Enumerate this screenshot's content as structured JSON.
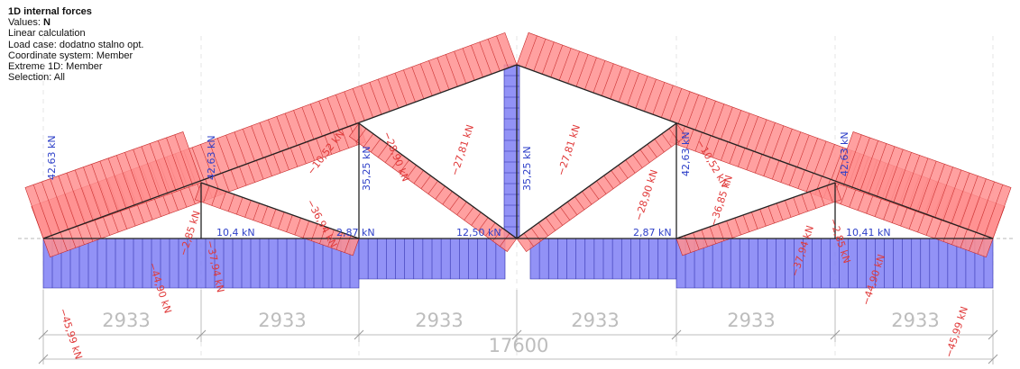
{
  "info": {
    "title": "1D internal forces",
    "values_label": "Values:",
    "values_value": "N",
    "calc": "Linear calculation",
    "load_case": "Load case: dodatno stalno opt.",
    "coord": "Coordinate system: Member",
    "extreme": "Extreme 1D: Member",
    "selection": "Selection: All"
  },
  "colors": {
    "tension": "#ff8f8f",
    "compression": "#7f7ff5",
    "member": "#222222",
    "dimension": "#bdbdbd"
  },
  "force_labels": [
    {
      "text": "-45,99 kN",
      "tone": "red"
    },
    {
      "text": "-44,90 kN",
      "tone": "red"
    },
    {
      "text": "-37,94 kN",
      "tone": "red"
    },
    {
      "text": "-2,85 kN",
      "tone": "red"
    },
    {
      "text": "-10,52 kN",
      "tone": "red"
    },
    {
      "text": "-36,94 kN",
      "tone": "red"
    },
    {
      "text": "-28,90 kN",
      "tone": "red"
    },
    {
      "text": "-27,81 kN",
      "tone": "red"
    },
    {
      "text": "-27,81 kN",
      "tone": "red"
    },
    {
      "text": "-28,90 kN",
      "tone": "red"
    },
    {
      "text": "-36,85 kN",
      "tone": "red"
    },
    {
      "text": "-10,52 kN",
      "tone": "red"
    },
    {
      "text": "-37,94 kN",
      "tone": "red"
    },
    {
      "text": "-2,85 kN",
      "tone": "red"
    },
    {
      "text": "-44,90 kN",
      "tone": "red"
    },
    {
      "text": "-45,99 kN",
      "tone": "red"
    },
    {
      "text": "42,63 kN",
      "tone": "blue"
    },
    {
      "text": "42,63 kN",
      "tone": "blue"
    },
    {
      "text": "35,25 kN",
      "tone": "blue"
    },
    {
      "text": "35,25 kN",
      "tone": "blue"
    },
    {
      "text": "42,63 kN",
      "tone": "blue"
    },
    {
      "text": "42,63 kN",
      "tone": "blue"
    },
    {
      "text": "10,4 kN",
      "tone": "blue"
    },
    {
      "text": "2,87 kN",
      "tone": "blue"
    },
    {
      "text": "12,50 kN",
      "tone": "blue"
    },
    {
      "text": "2,87 kN",
      "tone": "blue"
    },
    {
      "text": "10,41 kN",
      "tone": "blue"
    }
  ],
  "dimensions": {
    "segments": [
      "2933",
      "2933",
      "2933",
      "2933",
      "2933",
      "2933"
    ],
    "total": "17600"
  }
}
